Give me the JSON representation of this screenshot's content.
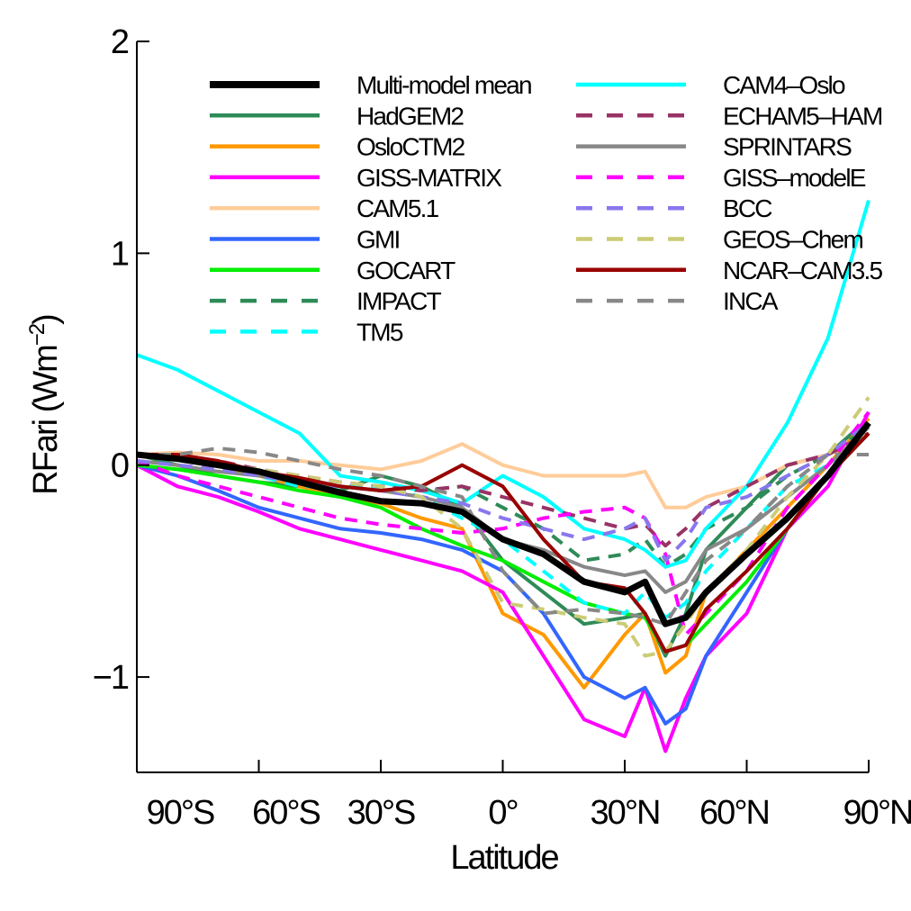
{
  "chart_data": {
    "type": "line",
    "xlabel": "Latitude",
    "ylabel_main": "RFari (Wm",
    "ylabel_exp": "−2",
    "ylabel_close": ")",
    "xlim": [
      -90,
      90
    ],
    "ylim": [
      -1.45,
      2.0
    ],
    "x_ticks": [
      {
        "value": -90,
        "label": "90°S"
      },
      {
        "value": -60,
        "label": "60°S"
      },
      {
        "value": -30,
        "label": "30°S"
      },
      {
        "value": 0,
        "label": "0°"
      },
      {
        "value": 30,
        "label": "30°N"
      },
      {
        "value": 60,
        "label": "60°N"
      },
      {
        "value": 90,
        "label": "90°N"
      }
    ],
    "y_ticks": [
      {
        "value": -1,
        "label": "−1"
      },
      {
        "value": 0,
        "label": "0"
      },
      {
        "value": 1,
        "label": "1"
      },
      {
        "value": 2,
        "label": "2"
      }
    ],
    "x": [
      -90,
      -80,
      -70,
      -60,
      -50,
      -40,
      -30,
      -20,
      -10,
      0,
      10,
      20,
      30,
      35,
      40,
      45,
      50,
      60,
      70,
      80,
      90
    ],
    "series": [
      {
        "name": "Multi-model mean",
        "color": "#000000",
        "dash": false,
        "width": 7,
        "values": [
          0.05,
          0.03,
          0.0,
          -0.03,
          -0.08,
          -0.13,
          -0.17,
          -0.18,
          -0.22,
          -0.35,
          -0.42,
          -0.55,
          -0.6,
          -0.55,
          -0.75,
          -0.72,
          -0.6,
          -0.42,
          -0.25,
          -0.05,
          0.2
        ]
      },
      {
        "name": "HadGEM2",
        "color": "#2e8b57",
        "dash": false,
        "width": 4,
        "values": [
          0.05,
          0.0,
          -0.05,
          -0.08,
          -0.1,
          -0.12,
          -0.05,
          -0.1,
          -0.2,
          -0.45,
          -0.6,
          -0.75,
          -0.72,
          -0.7,
          -0.9,
          -0.7,
          -0.4,
          -0.2,
          0.0,
          0.05,
          0.22
        ]
      },
      {
        "name": "OsloCTM2",
        "color": "#ff9900",
        "dash": false,
        "width": 4,
        "values": [
          0.05,
          0.05,
          0.0,
          -0.05,
          -0.1,
          -0.15,
          -0.18,
          -0.25,
          -0.3,
          -0.7,
          -0.8,
          -1.05,
          -0.8,
          -0.7,
          -0.98,
          -0.9,
          -0.6,
          -0.4,
          -0.2,
          0.0,
          0.22
        ]
      },
      {
        "name": "GISS-MATRIX",
        "color": "#ff00ff",
        "dash": false,
        "width": 4,
        "values": [
          0.0,
          -0.1,
          -0.15,
          -0.22,
          -0.3,
          -0.35,
          -0.4,
          -0.45,
          -0.5,
          -0.6,
          -0.9,
          -1.2,
          -1.28,
          -1.05,
          -1.35,
          -1.1,
          -0.9,
          -0.7,
          -0.3,
          -0.1,
          0.25
        ]
      },
      {
        "name": "CAM5.1",
        "color": "#ffcc99",
        "dash": false,
        "width": 4,
        "values": [
          0.05,
          0.06,
          0.05,
          0.02,
          0.02,
          0.0,
          -0.02,
          0.02,
          0.1,
          0.0,
          -0.05,
          -0.05,
          -0.05,
          -0.03,
          -0.2,
          -0.2,
          -0.15,
          -0.1,
          0.0,
          0.05,
          0.15
        ]
      },
      {
        "name": "GMI",
        "color": "#3366ff",
        "dash": false,
        "width": 4,
        "values": [
          0.0,
          -0.05,
          -0.12,
          -0.2,
          -0.25,
          -0.3,
          -0.32,
          -0.35,
          -0.4,
          -0.5,
          -0.7,
          -1.0,
          -1.1,
          -1.05,
          -1.22,
          -1.15,
          -0.9,
          -0.6,
          -0.3,
          -0.05,
          0.15
        ]
      },
      {
        "name": "GOCART",
        "color": "#00ee00",
        "dash": false,
        "width": 4,
        "values": [
          0.0,
          -0.02,
          -0.05,
          -0.08,
          -0.12,
          -0.15,
          -0.2,
          -0.3,
          -0.38,
          -0.45,
          -0.55,
          -0.65,
          -0.7,
          -0.72,
          -0.88,
          -0.85,
          -0.75,
          -0.55,
          -0.3,
          -0.05,
          0.15
        ]
      },
      {
        "name": "IMPACT",
        "color": "#2e8b57",
        "dash": true,
        "width": 4,
        "values": [
          0.05,
          0.03,
          0.0,
          -0.05,
          -0.1,
          -0.1,
          -0.1,
          -0.12,
          -0.1,
          -0.2,
          -0.3,
          -0.45,
          -0.42,
          -0.35,
          -0.48,
          -0.42,
          -0.3,
          -0.2,
          -0.05,
          0.05,
          0.18
        ]
      },
      {
        "name": "TM5",
        "color": "#00ffff",
        "dash": true,
        "width": 4,
        "values": [
          0.05,
          0.03,
          0.0,
          -0.05,
          -0.1,
          -0.1,
          -0.1,
          -0.15,
          -0.25,
          -0.35,
          -0.5,
          -0.65,
          -0.7,
          -0.6,
          -0.72,
          -0.65,
          -0.5,
          -0.3,
          -0.1,
          0.0,
          0.15
        ]
      },
      {
        "name": "CAM4–Oslo",
        "color": "#00ffff",
        "dash": false,
        "width": 4,
        "values": [
          0.52,
          0.45,
          0.35,
          0.25,
          0.15,
          -0.05,
          -0.08,
          -0.12,
          -0.18,
          -0.05,
          -0.15,
          -0.3,
          -0.35,
          -0.4,
          -0.48,
          -0.45,
          -0.3,
          -0.1,
          0.2,
          0.6,
          1.25
        ]
      },
      {
        "name": "ECHAM5–HAM",
        "color": "#993366",
        "dash": true,
        "width": 4,
        "values": [
          0.05,
          0.03,
          0.02,
          -0.02,
          -0.05,
          -0.08,
          -0.1,
          -0.12,
          -0.1,
          -0.15,
          -0.2,
          -0.25,
          -0.3,
          -0.28,
          -0.38,
          -0.3,
          -0.2,
          -0.1,
          0.0,
          0.05,
          0.15
        ]
      },
      {
        "name": "SPRINTARS",
        "color": "#888888",
        "dash": false,
        "width": 4,
        "values": [
          0.02,
          0.0,
          -0.03,
          -0.05,
          -0.08,
          -0.1,
          -0.12,
          -0.15,
          -0.2,
          -0.35,
          -0.4,
          -0.48,
          -0.52,
          -0.5,
          -0.6,
          -0.55,
          -0.4,
          -0.3,
          -0.15,
          0.0,
          0.18
        ]
      },
      {
        "name": "GISS–modelE",
        "color": "#ff00ff",
        "dash": true,
        "width": 4,
        "values": [
          0.02,
          -0.05,
          -0.1,
          -0.15,
          -0.2,
          -0.25,
          -0.28,
          -0.3,
          -0.32,
          -0.3,
          -0.25,
          -0.22,
          -0.2,
          -0.25,
          -0.42,
          -0.8,
          -0.7,
          -0.5,
          -0.2,
          0.0,
          0.25
        ]
      },
      {
        "name": "BCC",
        "color": "#8877ee",
        "dash": true,
        "width": 4,
        "values": [
          0.02,
          0.0,
          -0.02,
          -0.05,
          -0.08,
          -0.1,
          -0.12,
          -0.15,
          -0.18,
          -0.25,
          -0.3,
          -0.35,
          -0.3,
          -0.25,
          -0.45,
          -0.35,
          -0.2,
          -0.15,
          -0.05,
          0.05,
          0.2
        ]
      },
      {
        "name": "GEOS–Chem",
        "color": "#cccc77",
        "dash": true,
        "width": 4,
        "values": [
          0.05,
          0.03,
          0.0,
          -0.02,
          -0.05,
          -0.08,
          -0.1,
          -0.15,
          -0.3,
          -0.65,
          -0.68,
          -0.72,
          -0.75,
          -0.9,
          -0.88,
          -0.75,
          -0.6,
          -0.4,
          -0.15,
          0.05,
          0.32
        ]
      },
      {
        "name": "NCAR–CAM3.5",
        "color": "#990000",
        "dash": false,
        "width": 4,
        "values": [
          0.05,
          0.05,
          0.02,
          -0.03,
          -0.06,
          -0.1,
          -0.12,
          -0.1,
          0.0,
          -0.1,
          -0.35,
          -0.55,
          -0.58,
          -0.7,
          -0.88,
          -0.85,
          -0.68,
          -0.5,
          -0.3,
          -0.05,
          0.15
        ]
      },
      {
        "name": "INCA",
        "color": "#888888",
        "dash": true,
        "width": 4,
        "values": [
          0.05,
          0.05,
          0.08,
          0.06,
          0.02,
          -0.02,
          -0.05,
          -0.1,
          -0.15,
          -0.5,
          -0.7,
          -0.68,
          -0.7,
          -0.72,
          -0.75,
          -0.6,
          -0.45,
          -0.3,
          -0.1,
          0.05,
          0.05
        ]
      }
    ]
  }
}
